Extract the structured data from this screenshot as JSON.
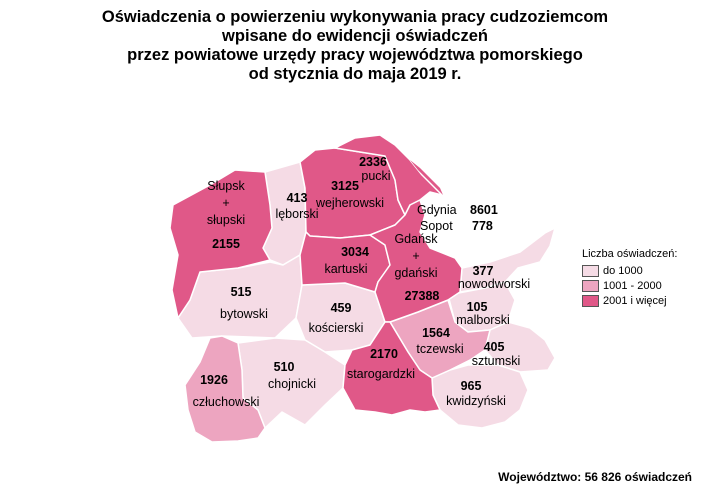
{
  "title_lines": [
    "Oświadczenia o powierzeniu wykonywania pracy cudzoziemcom",
    "wpisane do ewidencji oświadczeń",
    "przez powiatowe urzędy pracy województwa pomorskiego",
    "od stycznia do maja 2019 r."
  ],
  "colors": {
    "low": "#f5dbe5",
    "mid": "#eda5c0",
    "high": "#e05888",
    "border": "#ffffff"
  },
  "legend": {
    "title": "Liczba oświadczeń:",
    "items": [
      {
        "label": "do 1000",
        "color": "#f5dbe5"
      },
      {
        "label": "1001 - 2000",
        "color": "#eda5c0"
      },
      {
        "label": "2001 i więcej",
        "color": "#e05888"
      }
    ]
  },
  "regions": {
    "slupski": {
      "name_lines": [
        "Słupsk",
        "+",
        "słupski"
      ],
      "value": "2155",
      "class": "high"
    },
    "leborski": {
      "name": "lęborski",
      "value": "413",
      "class": "low"
    },
    "wejherowski": {
      "name": "wejherowski",
      "value": "3125",
      "class": "high"
    },
    "pucki": {
      "name": "pucki",
      "value": "2336",
      "class": "high"
    },
    "gdynia": {
      "name": "Gdynia",
      "value": "8601"
    },
    "sopot": {
      "name": "Sopot",
      "value": "778"
    },
    "kartuski": {
      "name": "kartuski",
      "value": "3034",
      "class": "high"
    },
    "gdanski": {
      "name_lines": [
        "Gdańsk",
        "+",
        "gdański"
      ],
      "value": "27388",
      "class": "high"
    },
    "nowodworski": {
      "name": "nowodworski",
      "value": "377",
      "class": "low"
    },
    "bytowski": {
      "name": "bytowski",
      "value": "515",
      "class": "low"
    },
    "koscierski": {
      "name": "kościerski",
      "value": "459",
      "class": "low"
    },
    "malborski": {
      "name": "malborski",
      "value": "105",
      "class": "low"
    },
    "tczewski": {
      "name": "tczewski",
      "value": "1564",
      "class": "mid"
    },
    "sztumski": {
      "name": "sztumski",
      "value": "405",
      "class": "low"
    },
    "czluchowski": {
      "name": "człuchowski",
      "value": "1926",
      "class": "mid"
    },
    "chojnicki": {
      "name": "chojnicki",
      "value": "510",
      "class": "low"
    },
    "starogardzki": {
      "name": "starogardzki",
      "value": "2170",
      "class": "high"
    },
    "kwidzynski": {
      "name": "kwidzyński",
      "value": "965",
      "class": "low"
    }
  },
  "footer": "Województwo: 56 826 oświadczeń"
}
